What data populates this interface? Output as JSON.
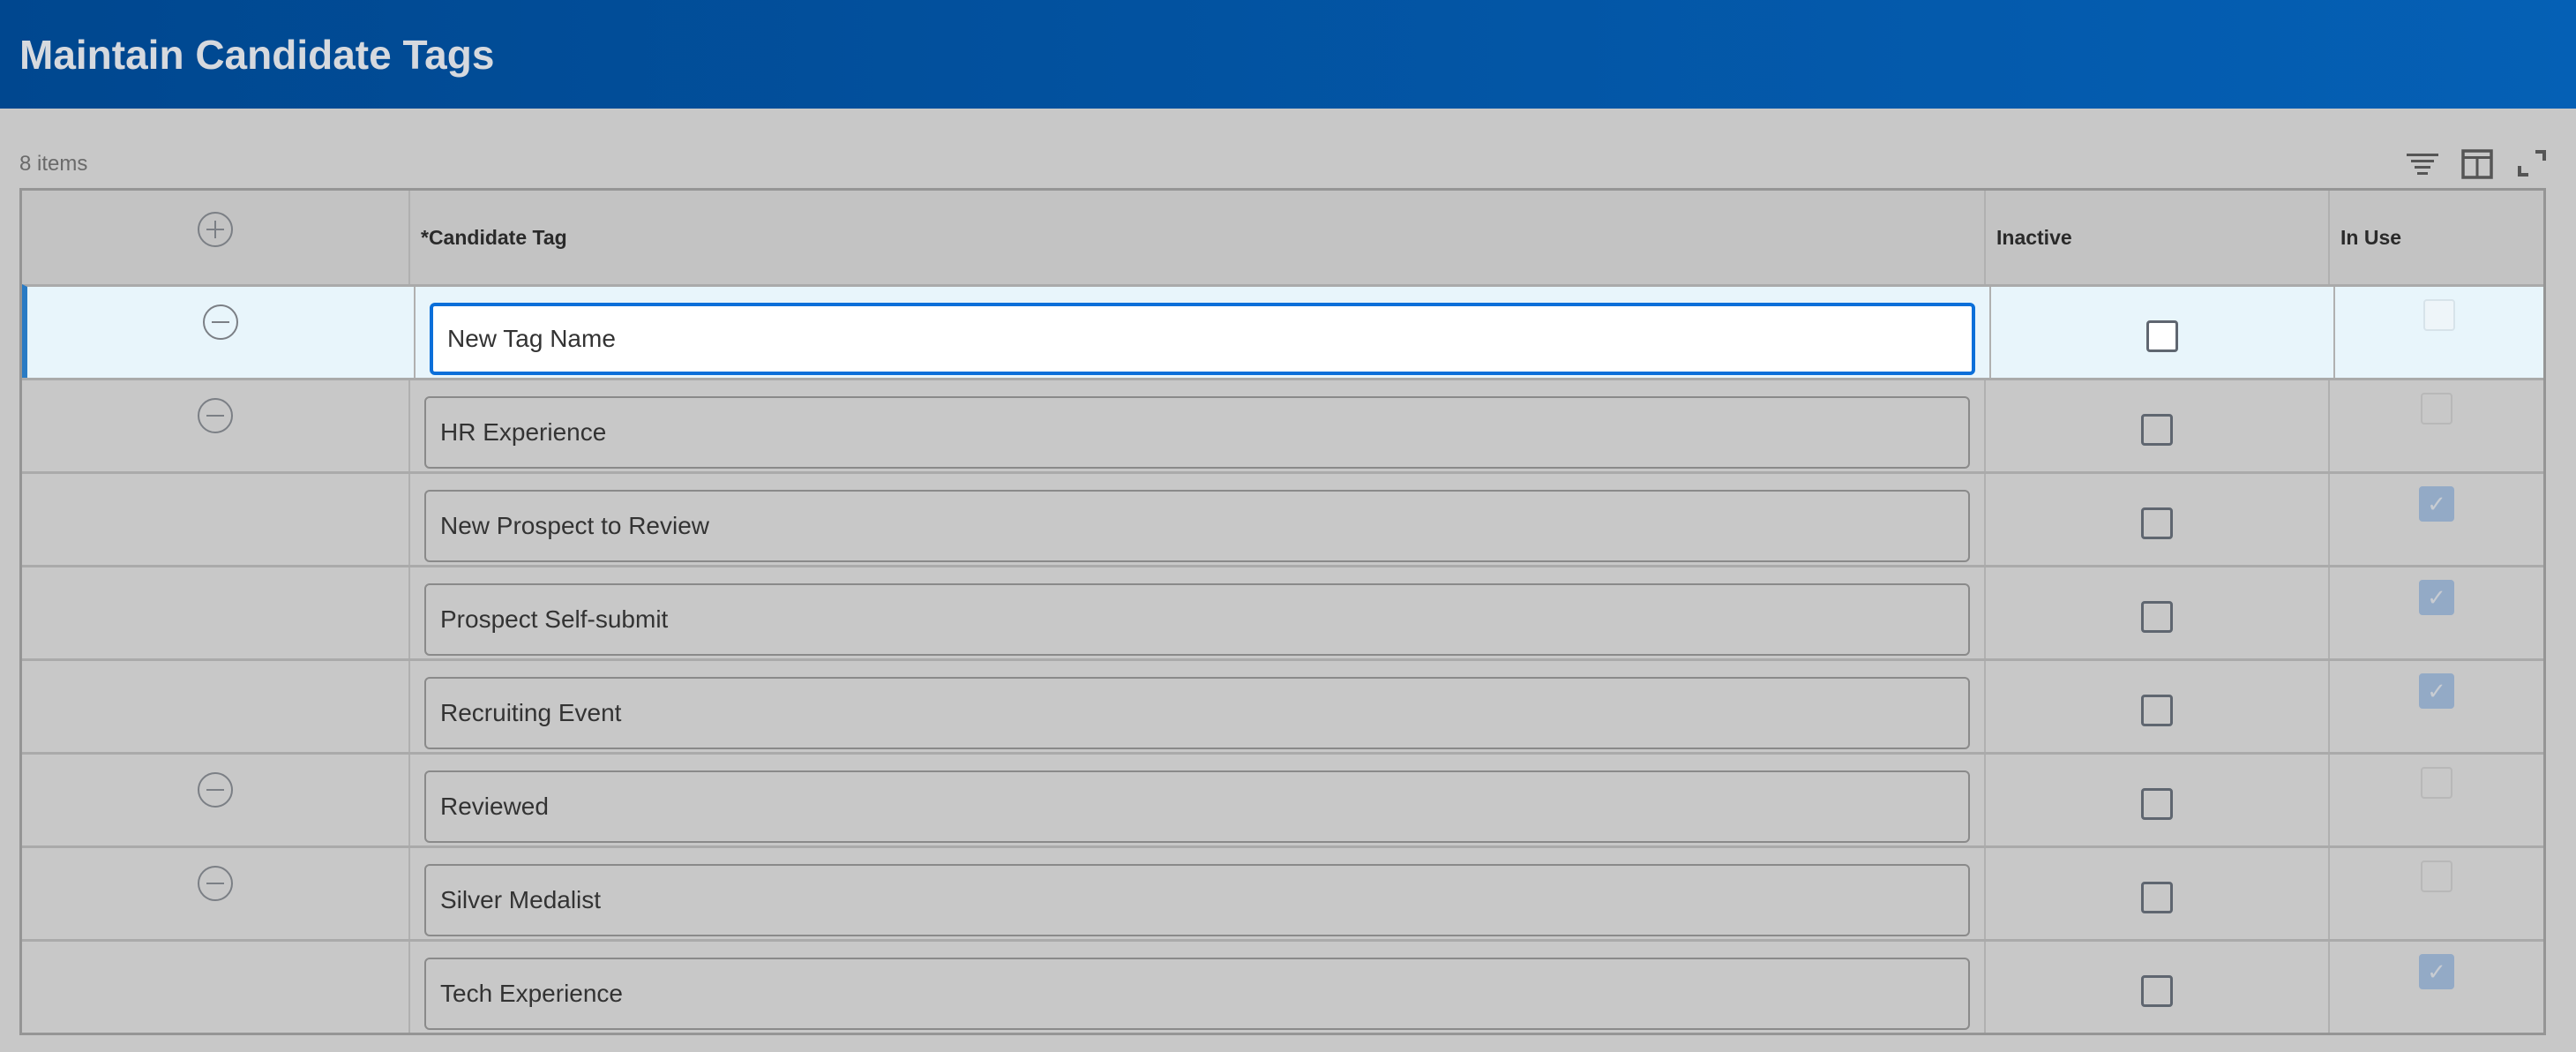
{
  "header": {
    "title": "Maintain Candidate Tags"
  },
  "grid": {
    "count": "8 items",
    "toolbar_icons": [
      "filter-icon",
      "columns-icon",
      "fullscreen-icon"
    ],
    "columns": [
      "*Candidate Tag",
      "Inactive",
      "In Use"
    ],
    "rows": [
      {
        "tag": "New Tag Name",
        "inactive": false,
        "in_use": false,
        "removable": true,
        "selected": true
      },
      {
        "tag": "HR Experience",
        "inactive": false,
        "in_use": false,
        "removable": true
      },
      {
        "tag": "New Prospect to Review",
        "inactive": false,
        "in_use": true,
        "removable": false
      },
      {
        "tag": "Prospect Self-submit",
        "inactive": false,
        "in_use": true,
        "removable": false
      },
      {
        "tag": "Recruiting Event",
        "inactive": false,
        "in_use": true,
        "removable": false
      },
      {
        "tag": "Reviewed",
        "inactive": false,
        "in_use": false,
        "removable": true
      },
      {
        "tag": "Silver Medalist",
        "inactive": false,
        "in_use": false,
        "removable": true
      },
      {
        "tag": "Tech Experience",
        "inactive": false,
        "in_use": true,
        "removable": false
      }
    ]
  },
  "colors": {
    "header": "#0353a4",
    "focus": "#0b6fd9",
    "checked": "#93aac6"
  }
}
